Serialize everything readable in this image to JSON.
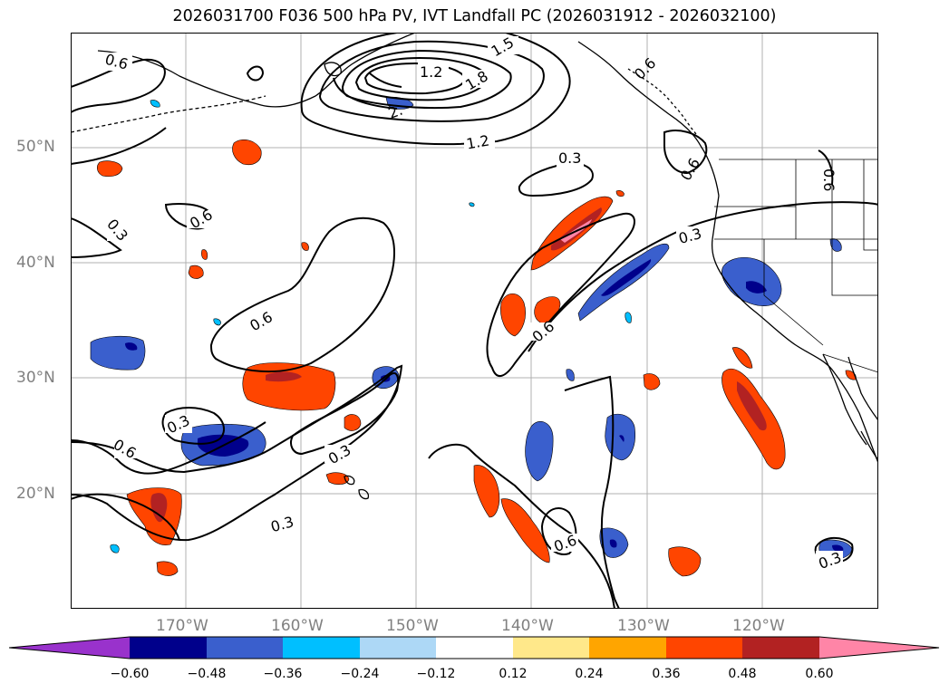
{
  "title": "2026031700 F036 500 hPa PV, IVT Landfall PC (2026031912 - 2026032100)",
  "latitude_labels": [
    "50°N",
    "40°N",
    "30°N",
    "20°N"
  ],
  "longitude_labels": [
    "170°W",
    "160°W",
    "150°W",
    "140°W",
    "130°W",
    "120°W"
  ],
  "contour_labels": {
    "c1": "0.6",
    "c2": "1.2",
    "c3": "1.5",
    "c4": "1.8",
    "c5": "2.",
    "c6": "1.2",
    "c7": "0.6",
    "c8": "0.3",
    "c9": "0.6",
    "c10": "0.6",
    "c11": "0.3",
    "c12": "0.3",
    "c13": "0.6",
    "c14": "0.3",
    "c15": "0.6",
    "c16": "0.3",
    "c17": "0.3",
    "c18": "0.6",
    "c19": "0.3",
    "c20": "0.6",
    "c21": "0.6"
  },
  "colorbar": {
    "ticks": [
      "−0.60",
      "−0.48",
      "−0.36",
      "−0.24",
      "−0.12",
      "0.12",
      "0.24",
      "0.36",
      "0.48",
      "0.60"
    ],
    "colors": {
      "lt_neg060": "#9932cc",
      "neg060_048": "#00008b",
      "neg048_036": "#3a5fcd",
      "neg036_024": "#00bfff",
      "neg024_012": "#add8f6",
      "neg012_012": "#ffffff",
      "p012_024": "#ffe88a",
      "p024_036": "#ffa500",
      "p036_048": "#ff4500",
      "p048_060": "#b22222",
      "gt_060": "#ff85a7"
    }
  }
}
